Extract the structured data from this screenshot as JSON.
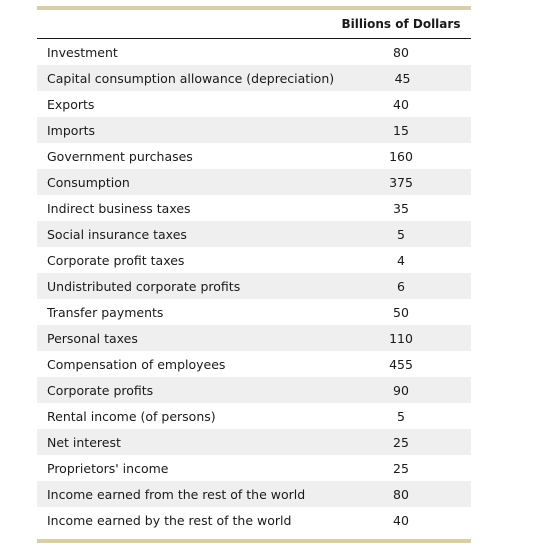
{
  "table": {
    "column_header": "Billions of Dollars",
    "rows": [
      {
        "label": "Investment",
        "value": "80"
      },
      {
        "label": "Capital consumption allowance (depreciation)",
        "value": "45"
      },
      {
        "label": "Exports",
        "value": "40"
      },
      {
        "label": "Imports",
        "value": "15"
      },
      {
        "label": "Government purchases",
        "value": "160"
      },
      {
        "label": "Consumption",
        "value": "375"
      },
      {
        "label": "Indirect business taxes",
        "value": "35"
      },
      {
        "label": "Social insurance taxes",
        "value": "5"
      },
      {
        "label": "Corporate profit taxes",
        "value": "4"
      },
      {
        "label": "Undistributed corporate profits",
        "value": "6"
      },
      {
        "label": "Transfer payments",
        "value": "50"
      },
      {
        "label": "Personal taxes",
        "value": "110"
      },
      {
        "label": "Compensation of employees",
        "value": "455"
      },
      {
        "label": "Corporate profits",
        "value": "90"
      },
      {
        "label": "Rental income (of persons)",
        "value": "5"
      },
      {
        "label": "Net interest",
        "value": "25"
      },
      {
        "label": "Proprietors' income",
        "value": "25"
      },
      {
        "label": "Income earned from the rest of the world",
        "value": "80"
      },
      {
        "label": "Income earned by the rest of the world",
        "value": "40"
      }
    ]
  }
}
